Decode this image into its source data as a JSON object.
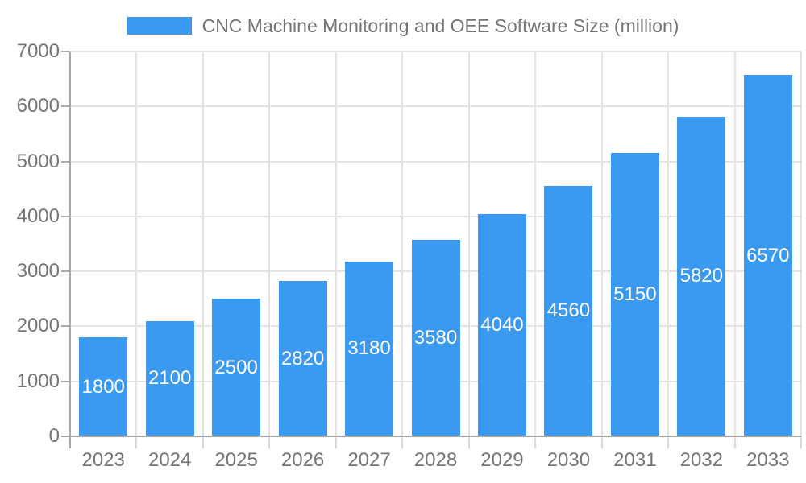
{
  "chart_data": {
    "type": "bar",
    "title": "CNC Machine Monitoring and OEE Software Size (million)",
    "categories": [
      "2023",
      "2024",
      "2025",
      "2026",
      "2027",
      "2028",
      "2029",
      "2030",
      "2031",
      "2032",
      "2033"
    ],
    "values": [
      1800,
      2100,
      2500,
      2820,
      3180,
      3580,
      4040,
      4560,
      5150,
      5820,
      6570
    ],
    "xlabel": "",
    "ylabel": "",
    "ylim": [
      0,
      7000
    ],
    "yticks": [
      0,
      1000,
      2000,
      3000,
      4000,
      5000,
      6000,
      7000
    ],
    "grid": true,
    "legend_position": "top",
    "value_labels": "inside-center",
    "colors": {
      "bar": "#3C99F0",
      "grid": "#E3E3E3",
      "axis_line": "#A8A8A8",
      "axis_tick": "#ABABAB",
      "x_tick": "#D9D9D9",
      "axis_text": "#757575",
      "value_text": "#FFFFFF"
    }
  }
}
